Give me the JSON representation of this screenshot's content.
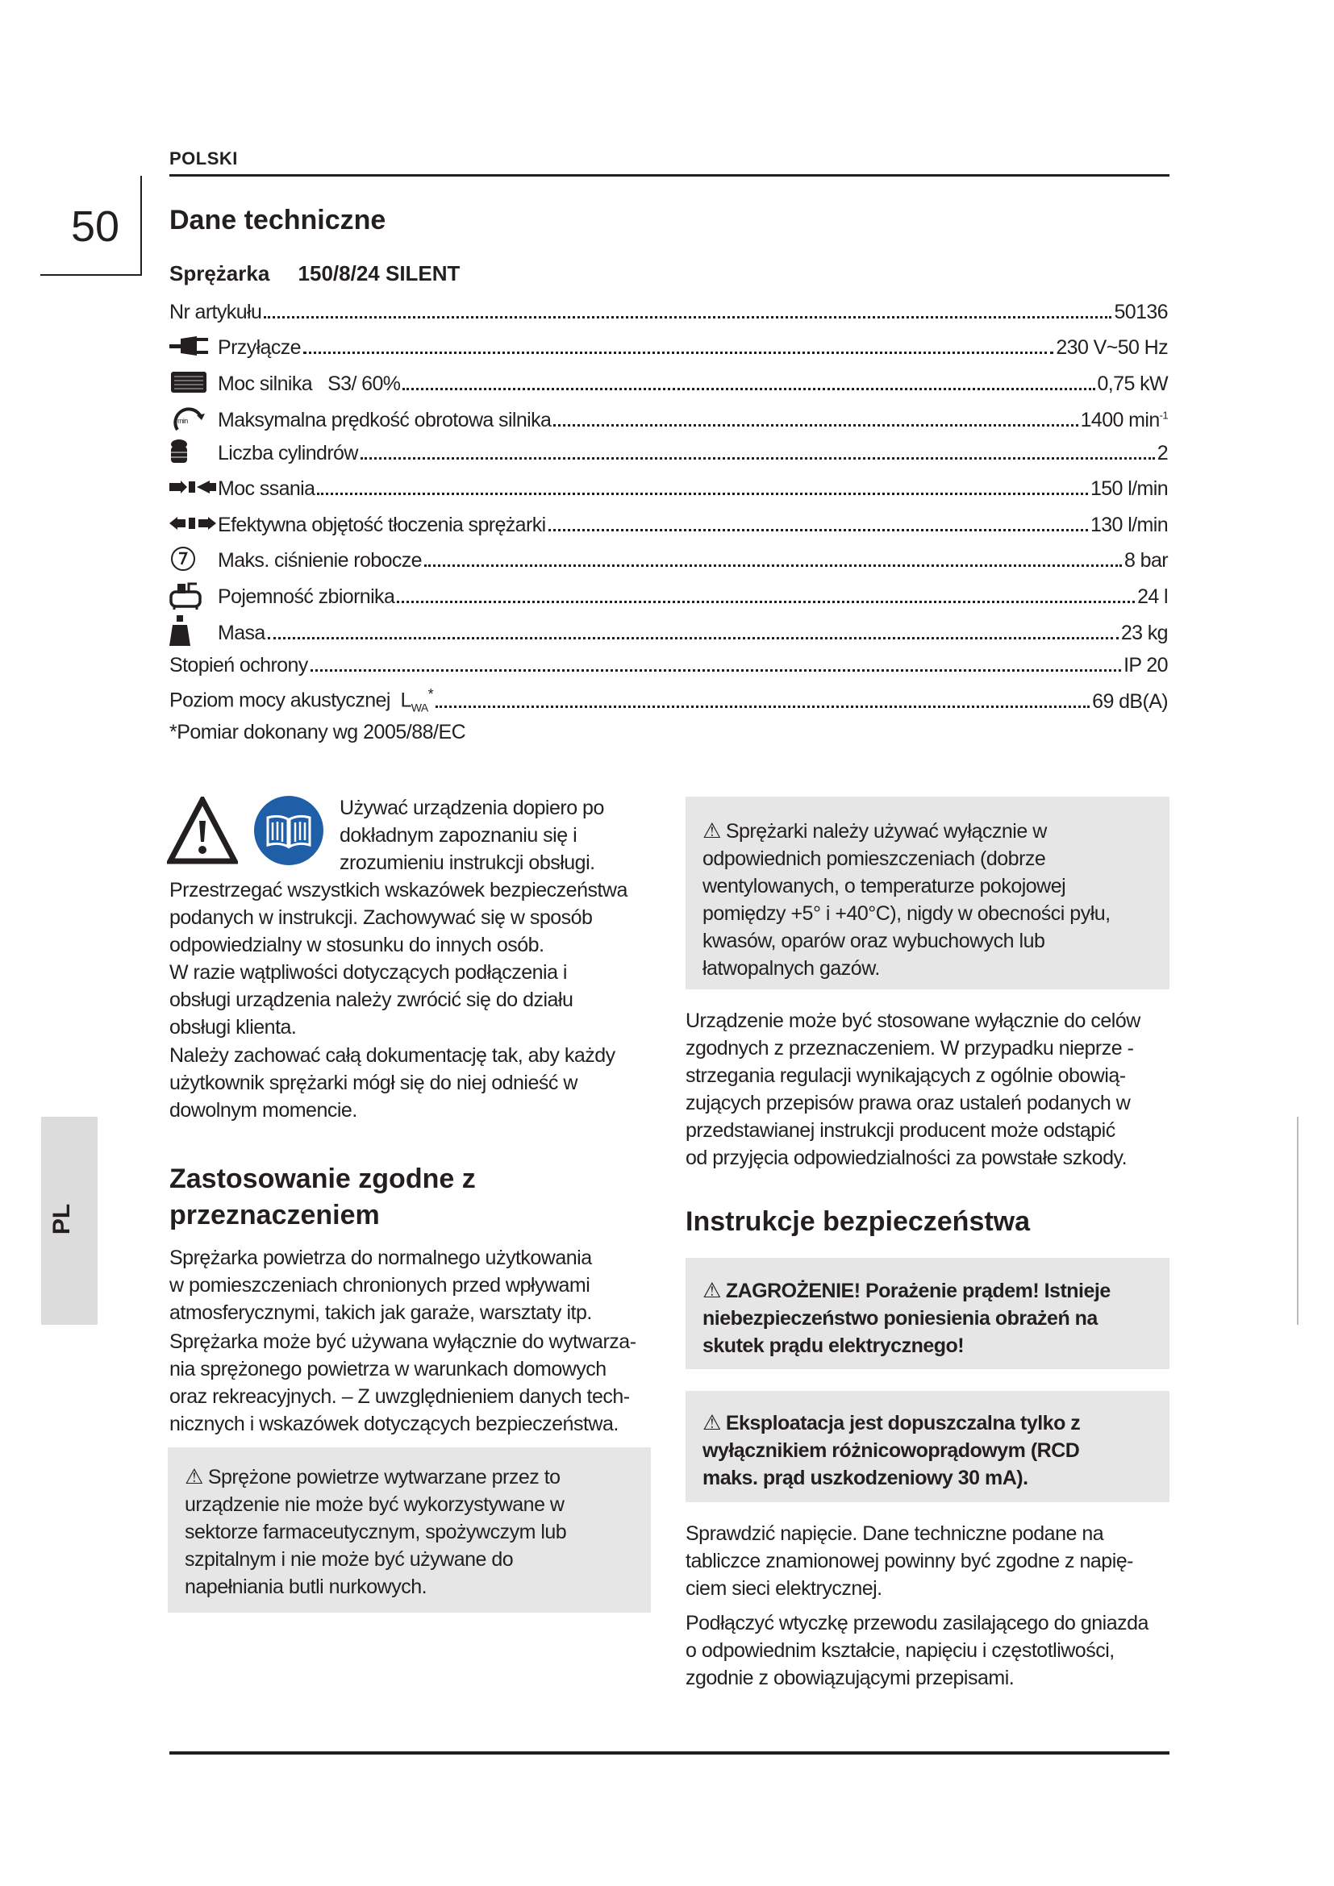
{
  "header": {
    "language": "POLSKI",
    "page_number": "50"
  },
  "side_tab": "PL",
  "tech": {
    "title": "Dane techniczne",
    "product_label": "Sprężarka",
    "product_model": "150/8/24 SILENT",
    "specs": [
      {
        "label": "Nr artykułu",
        "value": "50136",
        "icon": ""
      },
      {
        "label": "Przyłącze",
        "value": "230 V~50 Hz",
        "icon": "plug-icon"
      },
      {
        "label": "Moc silnika   S3/ 60%",
        "value": "0,75 kW",
        "icon": "motor-icon"
      },
      {
        "label": "Maksymalna prędkość obrotowa silnika",
        "value": "1400 min",
        "sup": "-1",
        "icon": "rpm-icon"
      },
      {
        "label": "Liczba cylindrów",
        "value": "2",
        "icon": "cylinder-icon"
      },
      {
        "label": "Moc ssania",
        "value": "150 l/min",
        "icon": "intake-icon"
      },
      {
        "label": "Efektywna objętość tłoczenia sprężarki",
        "value": "130 l/min",
        "icon": "output-icon"
      },
      {
        "label": "Maks. ciśnienie robocze",
        "value": "8 bar",
        "icon": "gauge-icon"
      },
      {
        "label": "Pojemność zbiornika",
        "value": "24 l",
        "icon": "tank-icon"
      },
      {
        "label": "Masa",
        "value": "23 kg",
        "icon": "weight-icon"
      },
      {
        "label": "Stopień ochrony",
        "value": "IP 20",
        "icon": ""
      },
      {
        "label": "Poziom mocy akustycznej  L",
        "sub": "WA",
        "label_suffix": "*",
        "value": "69 dB(A)",
        "icon": ""
      }
    ],
    "footnote": "*Pomiar dokonany wg 2005/88/EC"
  },
  "left": {
    "intro_lines": [
      "Używać urządzenia dopiero po",
      "dokładnym zapoznaniu się i",
      "zrozumieniu instrukcji obsługi."
    ],
    "para1": [
      "Przestrzegać wszystkich wskazówek bezpieczeństwa",
      "podanych w instrukcji. Zachowywać się w sposób",
      "odpowiedzialny w stosunku do innych osób.",
      "W razie wątpliwości dotyczących podłączenia i",
      "obsługi urządzenia należy zwrócić się do działu",
      "obsługi klienta."
    ],
    "para2": [
      "Należy zachować całą dokumentację tak, aby każdy",
      "użytkownik sprężarki mógł się do niej odnieść w",
      "dowolnym momencie."
    ],
    "heading": [
      "Zastosowanie zgodne z",
      "przeznaczeniem"
    ],
    "para3": [
      "Sprężarka powietrza do normalnego użytkowania",
      "w pomieszczeniach chronionych przed wpływami",
      "atmosferycznymi, takich jak garaże, warsztaty itp."
    ],
    "para4": [
      "Sprężarka może być używana wyłącznie do wytwarza-",
      "nia sprężonego powietrza w warunkach domowych",
      "oraz rekreacyjnych. – Z uwzględnieniem danych tech-",
      "nicznych i wskazówek dotyczących bezpieczeństwa."
    ],
    "note": [
      "Sprężone powietrze wytwarzane przez to",
      "urządzenie nie może być wykorzystywane w",
      "sektorze farmaceutycznym, spożywczym lub",
      "szpitalnym i nie może być używane do",
      "napełniania butli nurkowych."
    ]
  },
  "right": {
    "note1": [
      "Sprężarki należy używać wyłącznie w",
      "odpowiednich pomieszczeniach (dobrze",
      "wentylowanych, o temperaturze pokojowej",
      "pomiędzy +5° i +40°C), nigdy w obecności pyłu,",
      "kwasów, oparów oraz wybuchowych lub",
      "łatwopalnych gazów."
    ],
    "para1": [
      "Urządzenie może być stosowane wyłącznie do celów",
      "zgodnych z przeznaczeniem. W przypadku nieprze -",
      "strzegania regulacji wynikających z ogólnie obowią-",
      "zujących przepisów prawa oraz ustaleń podanych w",
      "przedstawianej instrukcji producent może odstąpić",
      "od przyjęcia odpowiedzialności za powstałe szkody."
    ],
    "heading": "Instrukcje bezpieczeństwa",
    "danger": [
      "ZAGROŻENIE! Porażenie prądem! Istnieje",
      "niebezpieczeństwo poniesienia obrażeń na",
      "skutek prądu elektrycznego!"
    ],
    "rcd": [
      "Eksploatacja jest dopuszczalna tylko z",
      "wyłącznikiem różnicowoprądowym (RCD",
      "maks. prąd uszkodzeniowy 30 mA)."
    ],
    "para2": [
      "Sprawdzić napięcie. Dane techniczne podane na",
      "tabliczce znamionowej powinny być zgodne z napię-",
      "ciem sieci elektrycznej."
    ],
    "para3": [
      "Podłączyć wtyczkę przewodu zasilającego do gniazda",
      "o odpowiednim kształcie, napięciu i częstotliwości,",
      "zgodnie z obowiązującymi przepisami."
    ]
  },
  "colors": {
    "text": "#231f20",
    "box_gray": "#e6e6e6",
    "tab_gray": "#dcdcdc",
    "book_blue": "#1f5fa8"
  }
}
